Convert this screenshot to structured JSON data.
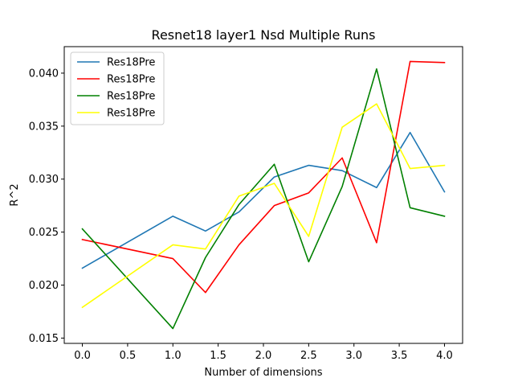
{
  "chart_data": {
    "type": "line",
    "title": "Resnet18 layer1 Nsd Multiple Runs",
    "xlabel": "Number of dimensions",
    "ylabel": "R^2",
    "xlim": [
      -0.2,
      4.2
    ],
    "ylim": [
      0.0145,
      0.0425
    ],
    "x": [
      0.0,
      1.0,
      1.36,
      1.73,
      2.12,
      2.5,
      2.87,
      3.25,
      3.62,
      4.0
    ],
    "xticks": [
      0.0,
      0.5,
      1.0,
      1.5,
      2.0,
      2.5,
      3.0,
      3.5,
      4.0
    ],
    "xtick_labels": [
      "0.0",
      "0.5",
      "1.0",
      "1.5",
      "2.0",
      "2.5",
      "3.0",
      "3.5",
      "4.0"
    ],
    "yticks": [
      0.015,
      0.02,
      0.025,
      0.03,
      0.035,
      0.04
    ],
    "ytick_labels": [
      "0.015",
      "0.020",
      "0.025",
      "0.030",
      "0.035",
      "0.040"
    ],
    "legend_position": "top-left",
    "grid": false,
    "series": [
      {
        "name": "Res18Pre",
        "color": "#1f77b4",
        "values": [
          0.0216,
          0.0265,
          0.0251,
          0.0269,
          0.0302,
          0.0313,
          0.0308,
          0.0292,
          0.0344,
          0.0288
        ]
      },
      {
        "name": "Res18Pre",
        "color": "#ff0000",
        "values": [
          0.0243,
          0.0225,
          0.0193,
          0.0238,
          0.0275,
          0.0287,
          0.032,
          0.024,
          0.0411,
          0.041
        ]
      },
      {
        "name": "Res18Pre",
        "color": "#008000",
        "values": [
          0.0253,
          0.0159,
          0.0226,
          0.0276,
          0.0314,
          0.0222,
          0.0293,
          0.0404,
          0.0273,
          0.0265
        ]
      },
      {
        "name": "Res18Pre",
        "color": "#ffff00",
        "values": [
          0.0179,
          0.0238,
          0.0234,
          0.0284,
          0.0296,
          0.0246,
          0.0349,
          0.0371,
          0.031,
          0.0313
        ]
      }
    ]
  }
}
